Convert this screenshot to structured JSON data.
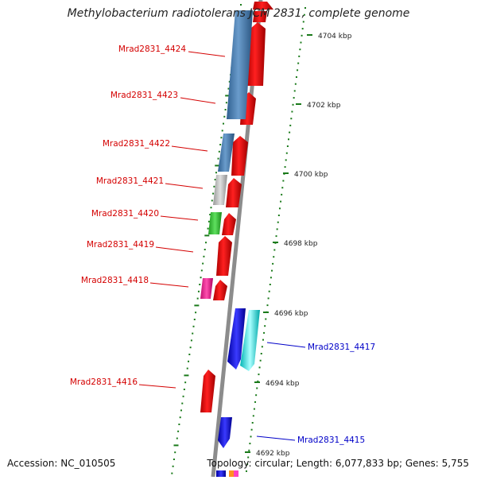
{
  "title": "Methylobacterium radiotolerans JCM 2831, complete genome",
  "footer": {
    "accession": "Accession: NC_010505",
    "topology": "Topology: circular; Length: 6,077,833 bp; Genes: 5,755"
  },
  "colors": {
    "backbone": "#8c8c8c",
    "tick": "#1a7a1a",
    "label_left": "#d40000",
    "label_right": "#0000c8"
  },
  "scale_labels": [
    "4704 kbp",
    "4702 kbp",
    "4700 kbp",
    "4698 kbp",
    "4696 kbp",
    "4694 kbp",
    "4692 kbp"
  ],
  "genes": [
    {
      "label": "Mrad2831_4424",
      "side": "left"
    },
    {
      "label": "Mrad2831_4423",
      "side": "left"
    },
    {
      "label": "Mrad2831_4422",
      "side": "left"
    },
    {
      "label": "Mrad2831_4421",
      "side": "left"
    },
    {
      "label": "Mrad2831_4420",
      "side": "left"
    },
    {
      "label": "Mrad2831_4419",
      "side": "left"
    },
    {
      "label": "Mrad2831_4418",
      "side": "left"
    },
    {
      "label": "Mrad2831_4417",
      "side": "right"
    },
    {
      "label": "Mrad2831_4416",
      "side": "left"
    },
    {
      "label": "Mrad2831_4415",
      "side": "right"
    }
  ]
}
